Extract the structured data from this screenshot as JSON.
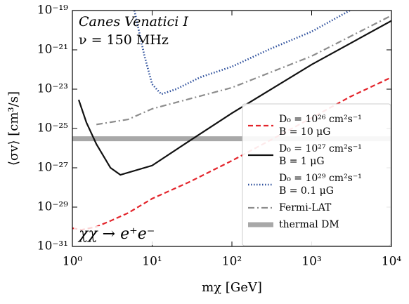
{
  "chart_data": {
    "type": "line",
    "annotations": [
      "Canes Venatici I",
      "ν = 150 MHz",
      "χχ → e⁺e⁻"
    ],
    "x_label": "mχ [GeV]",
    "y_label": "⟨σv⟩ [cm³/s]",
    "xscale": "log",
    "yscale": "log",
    "xlim": [
      1,
      10000
    ],
    "ylim": [
      1e-31,
      1e-19
    ],
    "xticks": [
      {
        "value": 1,
        "label": "10⁰"
      },
      {
        "value": 10,
        "label": "10¹"
      },
      {
        "value": 100,
        "label": "10²"
      },
      {
        "value": 1000,
        "label": "10³"
      },
      {
        "value": 10000,
        "label": "10⁴"
      }
    ],
    "yticks": [
      {
        "value": 1e-31,
        "label": "10⁻³¹"
      },
      {
        "value": 1e-29,
        "label": "10⁻²⁹"
      },
      {
        "value": 1e-27,
        "label": "10⁻²⁷"
      },
      {
        "value": 1e-25,
        "label": "10⁻²⁵"
      },
      {
        "value": 1e-23,
        "label": "10⁻²³"
      },
      {
        "value": 1e-21,
        "label": "10⁻²¹"
      },
      {
        "value": 1e-19,
        "label": "10⁻¹⁹"
      }
    ],
    "legend": "lower right",
    "series": [
      {
        "name": "D₀ = 10²⁶ cm²s⁻¹\nB = 10 μG",
        "color": "#e3242b",
        "linestyle": "dashed",
        "x": [
          1,
          1.3,
          2,
          3,
          5,
          10,
          30,
          100,
          300,
          1000,
          3000,
          10000
        ],
        "values": [
          8.5e-31,
          7e-31,
          1e-30,
          2e-30,
          5e-30,
          2.7e-29,
          2e-28,
          2.3e-27,
          2.5e-26,
          3.5e-25,
          4e-24,
          4e-23
        ]
      },
      {
        "name": "D₀ = 10²⁷ cm²s⁻¹\nB = 1 μG",
        "color": "#111111",
        "linestyle": "solid",
        "x": [
          1.2,
          1.5,
          2,
          3,
          4,
          10,
          30,
          100,
          1000,
          10000
        ],
        "values": [
          2.9e-24,
          2e-25,
          1.6e-26,
          1e-27,
          4.4e-28,
          1.3e-27,
          2.5e-26,
          6e-25,
          1.8e-22,
          3e-20
        ]
      },
      {
        "name": "D₀ = 10²⁹ cm²s⁻¹\nB = 0.1 μG",
        "color": "#2a4d9b",
        "linestyle": "dotted",
        "x": [
          6,
          8,
          10,
          13,
          20,
          40,
          100,
          300,
          1000,
          3000
        ],
        "values": [
          1e-19,
          5e-22,
          1.8e-23,
          5.6e-24,
          1e-23,
          4e-23,
          1.4e-22,
          1.1e-21,
          8.5e-21,
          1e-19
        ]
      },
      {
        "name": "Fermi-LAT",
        "color": "#8c8c8c",
        "linestyle": "dashdot",
        "x": [
          2,
          5,
          10,
          100,
          1000,
          10000
        ],
        "values": [
          1.6e-25,
          2.9e-25,
          1e-24,
          1.2e-23,
          4.8e-22,
          5.6e-20
        ]
      },
      {
        "name": "thermal DM",
        "color": "#a8a8a8",
        "linestyle": "thick",
        "x": [
          1,
          10000
        ],
        "values": [
          3e-26,
          3e-26
        ]
      }
    ]
  }
}
